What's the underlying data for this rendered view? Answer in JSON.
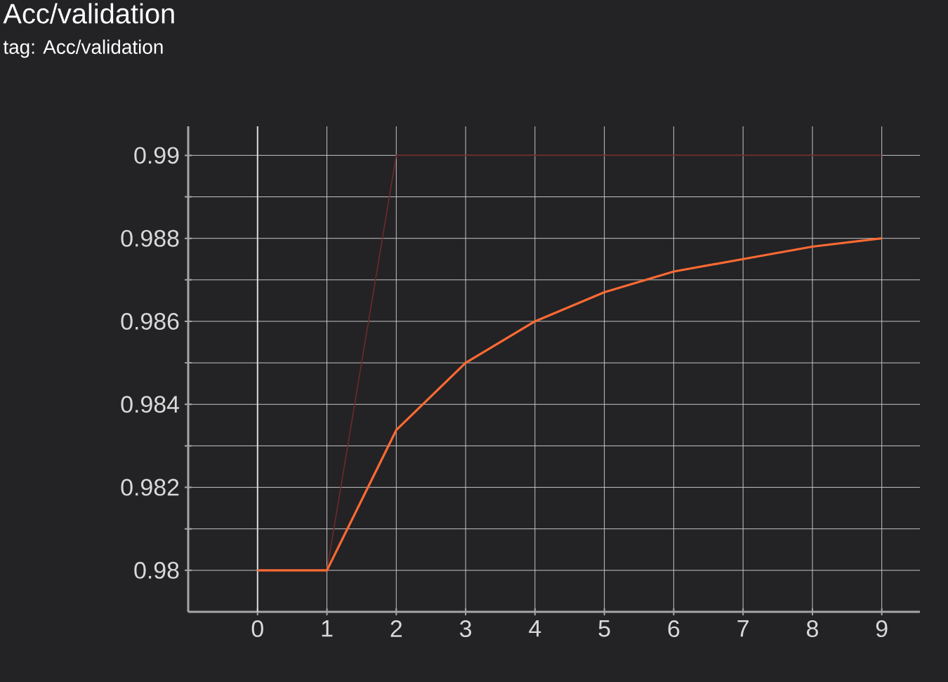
{
  "chart_data": {
    "type": "line",
    "title": "Acc/validation",
    "subtitle": "tag: Acc/validation",
    "x": [
      0,
      1,
      2,
      3,
      4,
      5,
      6,
      7,
      8,
      9
    ],
    "series": [
      {
        "color": "#6e2a2a",
        "values": [
          0.98,
          0.98,
          0.99,
          0.99,
          0.99,
          0.99,
          0.99,
          0.99,
          0.99,
          0.99
        ]
      },
      {
        "color": "#ff6a33",
        "values": [
          0.98,
          0.98,
          0.98338,
          0.985,
          0.986,
          0.9867,
          0.9872,
          0.9875,
          0.9878,
          0.988
        ]
      }
    ],
    "xlim": [
      -1,
      9.55
    ],
    "xticks": [
      0,
      1,
      2,
      3,
      4,
      5,
      6,
      7,
      8,
      9
    ],
    "ylim": [
      0.979,
      0.9907
    ],
    "yticks": [
      0.98,
      {
        "value": 0.981,
        "label": null
      },
      0.982,
      {
        "value": 0.983,
        "label": null
      },
      0.984,
      {
        "value": 0.985,
        "label": null
      },
      0.986,
      {
        "value": 0.987,
        "label": null
      },
      0.988,
      {
        "value": 0.989,
        "label": null
      },
      0.99
    ],
    "grid": true,
    "line_style": "solid"
  }
}
